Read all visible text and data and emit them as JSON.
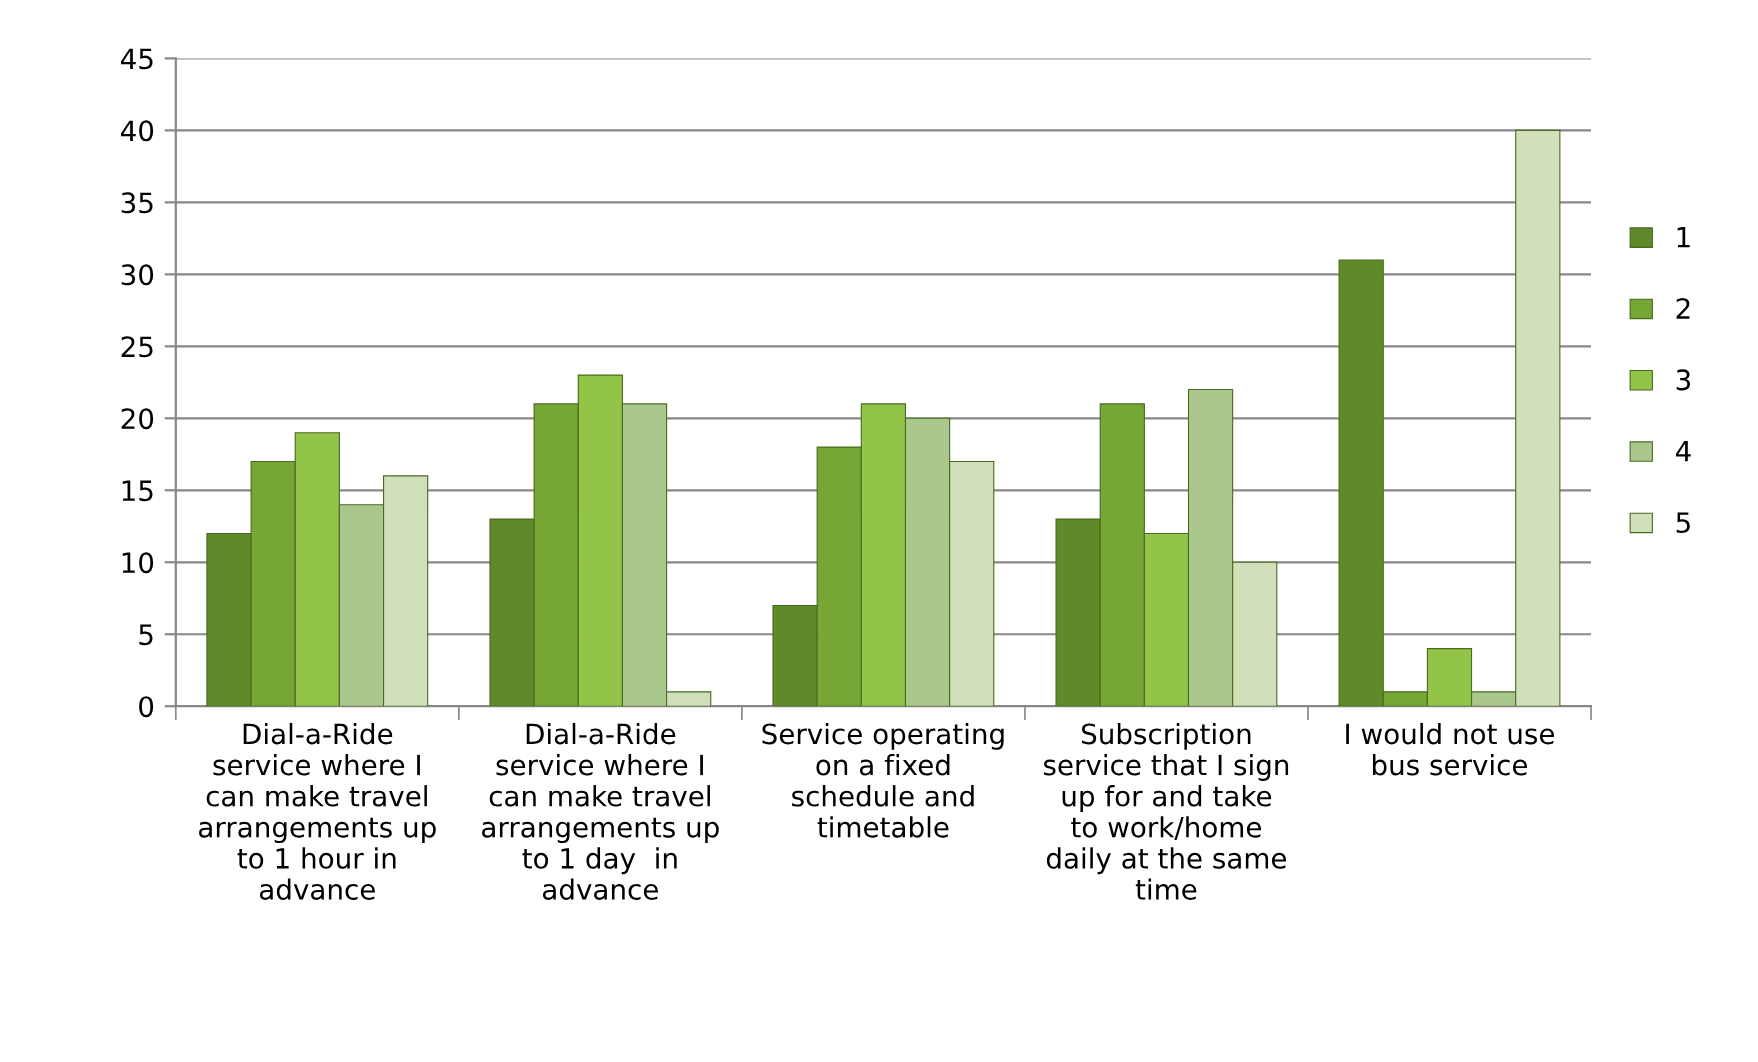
{
  "chart_data": {
    "type": "bar",
    "categories": [
      "Dial-a-Ride\nservice where I\ncan make travel\narrangements up\nto 1 hour in\nadvance",
      "Dial-a-Ride\nservice where I\ncan make travel\narrangements up\nto 1 day  in\nadvance",
      "Service operating\non a fixed\nschedule and\ntimetable",
      "Subscription\nservice that I sign\nup for and take\nto work/home\ndaily at the same\ntime",
      "I would not use\nbus service"
    ],
    "series": [
      {
        "name": "1",
        "color": "#5e8a2a",
        "values": [
          12,
          13,
          7,
          13,
          31
        ]
      },
      {
        "name": "2",
        "color": "#76a634",
        "values": [
          17,
          21,
          18,
          21,
          1
        ]
      },
      {
        "name": "3",
        "color": "#92c447",
        "values": [
          19,
          23,
          21,
          12,
          4
        ]
      },
      {
        "name": "4",
        "color": "#aac88e",
        "values": [
          14,
          21,
          20,
          22,
          1
        ]
      },
      {
        "name": "5",
        "color": "#cfe0bb",
        "values": [
          16,
          1,
          17,
          10,
          40
        ]
      }
    ],
    "ylim": [
      0,
      45
    ],
    "yticks": [
      0,
      5,
      10,
      15,
      20,
      25,
      30,
      35,
      40,
      45
    ],
    "grid": "y",
    "legend": "right"
  }
}
